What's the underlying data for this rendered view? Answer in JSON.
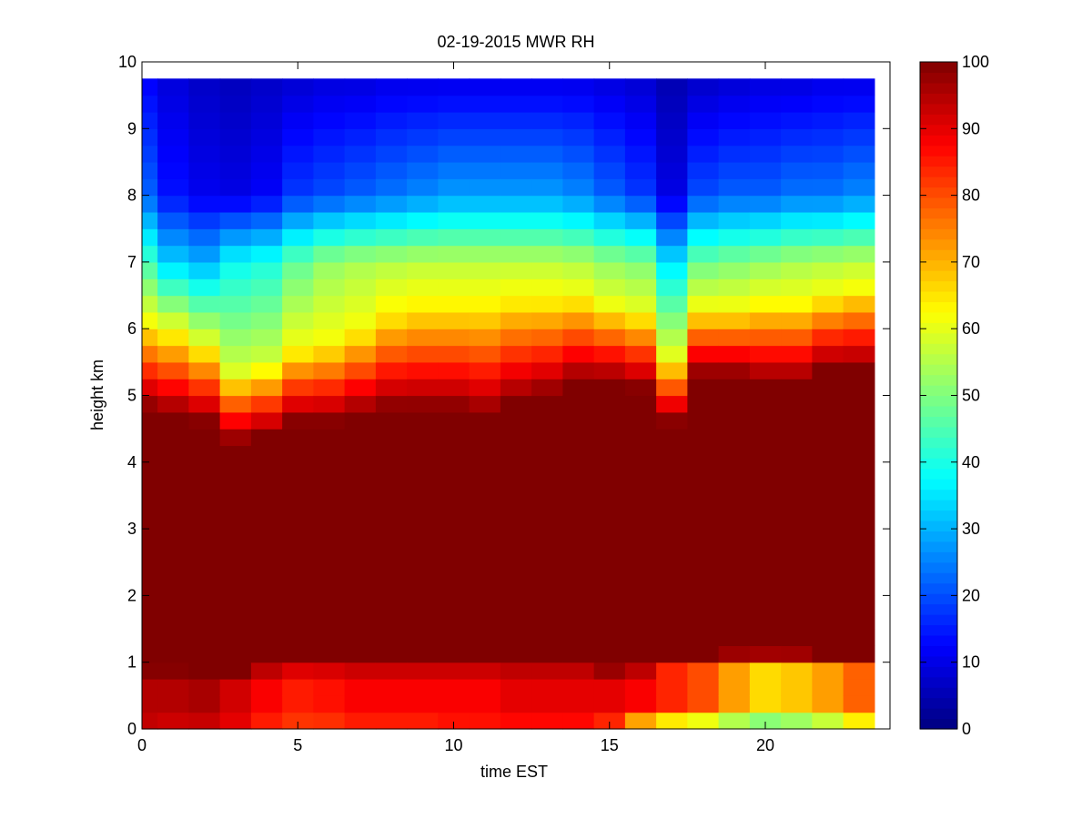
{
  "chart_data": {
    "type": "heatmap",
    "title": "02-19-2015 MWR RH",
    "xlabel": "time EST",
    "ylabel": "height km",
    "xlim": [
      0,
      24
    ],
    "ylim": [
      0,
      10
    ],
    "xticks": [
      0,
      5,
      10,
      15,
      20
    ],
    "xtick_labels": [
      "0",
      "5",
      "10",
      "15",
      "20"
    ],
    "yticks": [
      0,
      1,
      2,
      3,
      4,
      5,
      6,
      7,
      8,
      9,
      10
    ],
    "ytick_labels": [
      "0",
      "1",
      "2",
      "3",
      "4",
      "5",
      "6",
      "7",
      "8",
      "9",
      "10"
    ],
    "colormap": "jet",
    "colorbar": {
      "range": [
        0,
        100
      ],
      "ticks": [
        0,
        10,
        20,
        30,
        40,
        50,
        60,
        70,
        80,
        90,
        100
      ],
      "tick_labels": [
        "0",
        "10",
        "20",
        "30",
        "40",
        "50",
        "60",
        "70",
        "80",
        "90",
        "100"
      ]
    },
    "time_hours": [
      0,
      1,
      2,
      3,
      4,
      5,
      6,
      7,
      8,
      9,
      10,
      11,
      12,
      13,
      14,
      15,
      16,
      17,
      18,
      19,
      20,
      21,
      22,
      23
    ],
    "data_extent": {
      "time_max": 23.5,
      "height_max": 9.75
    },
    "description_of_values": "relative humidity (%) per hourly column, piecewise-linear profile vs height (km)",
    "profiles": [
      {
        "sfc": 92,
        "low": 95,
        "low_top": 0.7,
        "sat_base": 0.9,
        "sat_top": 4.8,
        "tr_top": 6.1,
        "rh_tr": 62,
        "rh_7": 44,
        "rh_8": 22,
        "rh_top": 12
      },
      {
        "sfc": 90,
        "low": 95,
        "low_top": 0.7,
        "sat_base": 0.9,
        "sat_top": 4.7,
        "tr_top": 5.9,
        "rh_tr": 64,
        "rh_7": 33,
        "rh_8": 14,
        "rh_top": 9
      },
      {
        "sfc": 90,
        "low": 96,
        "low_top": 0.7,
        "sat_base": 0.85,
        "sat_top": 4.6,
        "tr_top": 5.8,
        "rh_tr": 60,
        "rh_7": 30,
        "rh_8": 11,
        "rh_top": 7
      },
      {
        "sfc": 88,
        "low": 92,
        "low_top": 0.7,
        "sat_base": 0.85,
        "sat_top": 4.3,
        "tr_top": 5.4,
        "rh_tr": 58,
        "rh_7": 38,
        "rh_8": 10,
        "rh_top": 6
      },
      {
        "sfc": 82,
        "low": 88,
        "low_top": 0.8,
        "sat_base": 0.95,
        "sat_top": 4.4,
        "tr_top": 5.5,
        "rh_tr": 58,
        "rh_7": 40,
        "rh_8": 12,
        "rh_top": 7
      },
      {
        "sfc": 80,
        "low": 85,
        "low_top": 0.8,
        "sat_base": 1.0,
        "sat_top": 4.6,
        "tr_top": 5.7,
        "rh_tr": 62,
        "rh_7": 47,
        "rh_8": 18,
        "rh_top": 8
      },
      {
        "sfc": 80,
        "low": 86,
        "low_top": 0.8,
        "sat_base": 1.0,
        "sat_top": 4.6,
        "tr_top": 5.8,
        "rh_tr": 62,
        "rh_7": 52,
        "rh_8": 20,
        "rh_top": 9
      },
      {
        "sfc": 82,
        "low": 88,
        "low_top": 0.8,
        "sat_base": 1.0,
        "sat_top": 4.7,
        "tr_top": 6.0,
        "rh_tr": 62,
        "rh_7": 54,
        "rh_8": 22,
        "rh_top": 9
      },
      {
        "sfc": 82,
        "low": 88,
        "low_top": 0.8,
        "sat_base": 1.0,
        "sat_top": 4.8,
        "tr_top": 6.2,
        "rh_tr": 64,
        "rh_7": 55,
        "rh_8": 24,
        "rh_top": 10
      },
      {
        "sfc": 82,
        "low": 88,
        "low_top": 0.8,
        "sat_base": 1.0,
        "sat_top": 4.8,
        "tr_top": 6.3,
        "rh_tr": 64,
        "rh_7": 56,
        "rh_8": 26,
        "rh_top": 10
      },
      {
        "sfc": 84,
        "low": 88,
        "low_top": 0.8,
        "sat_base": 1.0,
        "sat_top": 4.8,
        "tr_top": 6.3,
        "rh_tr": 64,
        "rh_7": 56,
        "rh_8": 28,
        "rh_top": 10
      },
      {
        "sfc": 84,
        "low": 88,
        "low_top": 0.8,
        "sat_base": 1.0,
        "sat_top": 4.7,
        "tr_top": 6.3,
        "rh_tr": 64,
        "rh_7": 56,
        "rh_8": 28,
        "rh_top": 10
      },
      {
        "sfc": 84,
        "low": 90,
        "low_top": 0.8,
        "sat_base": 1.0,
        "sat_top": 4.9,
        "tr_top": 6.4,
        "rh_tr": 64,
        "rh_7": 56,
        "rh_8": 28,
        "rh_top": 10
      },
      {
        "sfc": 84,
        "low": 90,
        "low_top": 0.8,
        "sat_base": 1.0,
        "sat_top": 5.0,
        "tr_top": 6.4,
        "rh_tr": 64,
        "rh_7": 56,
        "rh_8": 28,
        "rh_top": 10
      },
      {
        "sfc": 84,
        "low": 90,
        "low_top": 0.8,
        "sat_base": 1.0,
        "sat_top": 5.2,
        "tr_top": 6.5,
        "rh_tr": 62,
        "rh_7": 55,
        "rh_8": 26,
        "rh_top": 10
      },
      {
        "sfc": 78,
        "low": 90,
        "low_top": 0.8,
        "sat_base": 0.9,
        "sat_top": 5.2,
        "tr_top": 6.4,
        "rh_tr": 60,
        "rh_7": 52,
        "rh_8": 22,
        "rh_top": 9
      },
      {
        "sfc": 55,
        "low": 88,
        "low_top": 0.8,
        "sat_base": 0.95,
        "sat_top": 5.1,
        "tr_top": 6.3,
        "rh_tr": 60,
        "rh_7": 50,
        "rh_8": 18,
        "rh_top": 8
      },
      {
        "sfc": 45,
        "low": 84,
        "low_top": 0.9,
        "sat_base": 1.1,
        "sat_top": 4.6,
        "tr_top": 5.6,
        "rh_tr": 60,
        "rh_7": 35,
        "rh_8": 10,
        "rh_top": 5
      },
      {
        "sfc": 42,
        "low": 80,
        "low_top": 0.9,
        "sat_base": 1.1,
        "sat_top": 5.3,
        "tr_top": 6.3,
        "rh_tr": 62,
        "rh_7": 48,
        "rh_8": 20,
        "rh_top": 7
      },
      {
        "sfc": 38,
        "low": 72,
        "low_top": 0.9,
        "sat_base": 1.15,
        "sat_top": 5.3,
        "tr_top": 6.3,
        "rh_tr": 62,
        "rh_7": 50,
        "rh_8": 22,
        "rh_top": 8
      },
      {
        "sfc": 36,
        "low": 66,
        "low_top": 0.9,
        "sat_base": 1.15,
        "sat_top": 5.2,
        "tr_top": 6.4,
        "rh_tr": 62,
        "rh_7": 52,
        "rh_8": 22,
        "rh_top": 9
      },
      {
        "sfc": 38,
        "low": 68,
        "low_top": 0.9,
        "sat_base": 1.15,
        "sat_top": 5.2,
        "tr_top": 6.4,
        "rh_tr": 62,
        "rh_7": 54,
        "rh_8": 24,
        "rh_top": 9
      },
      {
        "sfc": 42,
        "low": 72,
        "low_top": 0.9,
        "sat_base": 1.1,
        "sat_top": 5.4,
        "tr_top": 6.5,
        "rh_tr": 62,
        "rh_7": 55,
        "rh_8": 24,
        "rh_top": 10
      },
      {
        "sfc": 50,
        "low": 78,
        "low_top": 0.9,
        "sat_base": 1.05,
        "sat_top": 5.4,
        "tr_top": 6.6,
        "rh_tr": 62,
        "rh_7": 56,
        "rh_8": 26,
        "rh_top": 10
      }
    ]
  }
}
